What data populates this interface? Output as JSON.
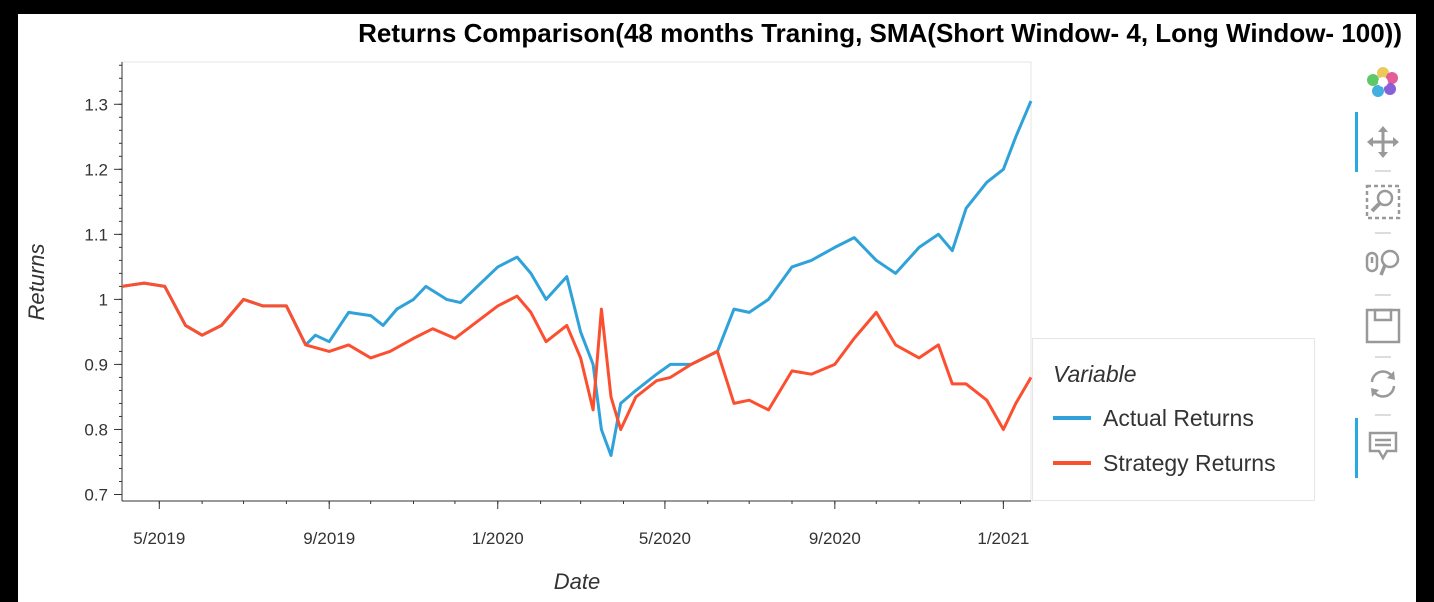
{
  "chart_data": {
    "type": "line",
    "title": "Returns Comparison(48 months Traning, SMA(Short Window- 4, Long Window- 100))",
    "xlabel": "Date",
    "ylabel": "Returns",
    "x_ticks": [
      "5/2019",
      "9/2019",
      "1/2020",
      "5/2020",
      "9/2020",
      "1/2021"
    ],
    "y_ticks": [
      "0.7",
      "0.8",
      "0.9",
      "1",
      "1.1",
      "1.2",
      "1.3"
    ],
    "ylim": [
      0.69,
      1.365
    ],
    "xlim": [
      "2019-04-04",
      "2021-01-21"
    ],
    "grid": false,
    "legend": {
      "title": "Variable",
      "position": "right"
    },
    "series": [
      {
        "name": "Actual Returns",
        "color": "#30a2da",
        "points": [
          [
            "2019-04-04",
            1.02
          ],
          [
            "2019-04-20",
            1.025
          ],
          [
            "2019-05-05",
            1.02
          ],
          [
            "2019-05-20",
            0.96
          ],
          [
            "2019-06-01",
            0.945
          ],
          [
            "2019-06-15",
            0.96
          ],
          [
            "2019-07-01",
            1.0
          ],
          [
            "2019-07-15",
            0.99
          ],
          [
            "2019-08-01",
            0.99
          ],
          [
            "2019-08-15",
            0.93
          ],
          [
            "2019-08-22",
            0.945
          ],
          [
            "2019-09-01",
            0.935
          ],
          [
            "2019-09-15",
            0.98
          ],
          [
            "2019-10-01",
            0.975
          ],
          [
            "2019-10-10",
            0.96
          ],
          [
            "2019-10-20",
            0.985
          ],
          [
            "2019-11-01",
            1.0
          ],
          [
            "2019-11-10",
            1.02
          ],
          [
            "2019-11-25",
            1.0
          ],
          [
            "2019-12-05",
            0.995
          ],
          [
            "2020-01-01",
            1.05
          ],
          [
            "2020-01-15",
            1.065
          ],
          [
            "2020-01-25",
            1.04
          ],
          [
            "2020-02-05",
            1.0
          ],
          [
            "2020-02-20",
            1.035
          ],
          [
            "2020-03-01",
            0.95
          ],
          [
            "2020-03-10",
            0.9
          ],
          [
            "2020-03-16",
            0.8
          ],
          [
            "2020-03-23",
            0.76
          ],
          [
            "2020-03-30",
            0.84
          ],
          [
            "2020-04-10",
            0.86
          ],
          [
            "2020-04-25",
            0.885
          ],
          [
            "2020-05-05",
            0.9
          ],
          [
            "2020-05-20",
            0.9
          ],
          [
            "2020-06-08",
            0.92
          ],
          [
            "2020-06-20",
            0.985
          ],
          [
            "2020-07-01",
            0.98
          ],
          [
            "2020-07-15",
            1.0
          ],
          [
            "2020-08-01",
            1.05
          ],
          [
            "2020-08-15",
            1.06
          ],
          [
            "2020-09-01",
            1.08
          ],
          [
            "2020-09-15",
            1.095
          ],
          [
            "2020-10-01",
            1.06
          ],
          [
            "2020-10-15",
            1.04
          ],
          [
            "2020-11-01",
            1.08
          ],
          [
            "2020-11-15",
            1.1
          ],
          [
            "2020-11-25",
            1.075
          ],
          [
            "2020-12-05",
            1.14
          ],
          [
            "2020-12-20",
            1.18
          ],
          [
            "2021-01-01",
            1.2
          ],
          [
            "2021-01-10",
            1.25
          ],
          [
            "2021-01-21",
            1.305
          ]
        ]
      },
      {
        "name": "Strategy Returns",
        "color": "#fc4f30",
        "points": [
          [
            "2019-04-04",
            1.02
          ],
          [
            "2019-04-20",
            1.025
          ],
          [
            "2019-05-05",
            1.02
          ],
          [
            "2019-05-20",
            0.96
          ],
          [
            "2019-06-01",
            0.945
          ],
          [
            "2019-06-15",
            0.96
          ],
          [
            "2019-07-01",
            1.0
          ],
          [
            "2019-07-15",
            0.99
          ],
          [
            "2019-08-01",
            0.99
          ],
          [
            "2019-08-15",
            0.93
          ],
          [
            "2019-09-01",
            0.92
          ],
          [
            "2019-09-15",
            0.93
          ],
          [
            "2019-10-01",
            0.91
          ],
          [
            "2019-10-15",
            0.92
          ],
          [
            "2019-11-01",
            0.94
          ],
          [
            "2019-11-15",
            0.955
          ],
          [
            "2019-12-01",
            0.94
          ],
          [
            "2020-01-01",
            0.99
          ],
          [
            "2020-01-15",
            1.005
          ],
          [
            "2020-01-25",
            0.98
          ],
          [
            "2020-02-05",
            0.935
          ],
          [
            "2020-02-20",
            0.96
          ],
          [
            "2020-03-01",
            0.91
          ],
          [
            "2020-03-10",
            0.83
          ],
          [
            "2020-03-16",
            0.985
          ],
          [
            "2020-03-23",
            0.85
          ],
          [
            "2020-03-30",
            0.8
          ],
          [
            "2020-04-10",
            0.85
          ],
          [
            "2020-04-25",
            0.875
          ],
          [
            "2020-05-05",
            0.88
          ],
          [
            "2020-05-20",
            0.9
          ],
          [
            "2020-06-08",
            0.92
          ],
          [
            "2020-06-20",
            0.84
          ],
          [
            "2020-07-01",
            0.845
          ],
          [
            "2020-07-15",
            0.83
          ],
          [
            "2020-08-01",
            0.89
          ],
          [
            "2020-08-15",
            0.885
          ],
          [
            "2020-09-01",
            0.9
          ],
          [
            "2020-09-15",
            0.94
          ],
          [
            "2020-10-01",
            0.98
          ],
          [
            "2020-10-15",
            0.93
          ],
          [
            "2020-11-01",
            0.91
          ],
          [
            "2020-11-15",
            0.93
          ],
          [
            "2020-11-25",
            0.87
          ],
          [
            "2020-12-05",
            0.87
          ],
          [
            "2020-12-20",
            0.845
          ],
          [
            "2021-01-01",
            0.8
          ],
          [
            "2021-01-10",
            0.84
          ],
          [
            "2021-01-21",
            0.88
          ]
        ]
      }
    ]
  },
  "toolbar": {
    "items": [
      "bokeh-logo-icon",
      "pan-icon",
      "box-zoom-icon",
      "wheel-zoom-icon",
      "save-icon",
      "reset-icon",
      "hover-icon"
    ]
  }
}
